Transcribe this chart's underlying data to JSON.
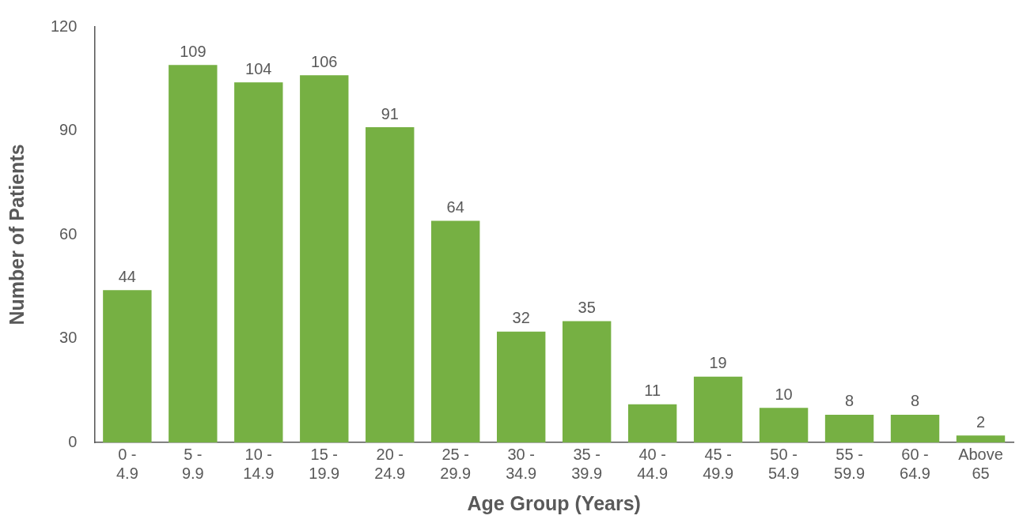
{
  "chart_data": {
    "type": "bar",
    "xlabel": "Age Group (Years)",
    "ylabel": "Number of Patients",
    "categories": [
      "0 - 4.9",
      "5 - 9.9",
      "10 - 14.9",
      "15 - 19.9",
      "20 - 24.9",
      "25 - 29.9",
      "30 - 34.9",
      "35 - 39.9",
      "40 - 44.9",
      "45 - 49.9",
      "50 - 54.9",
      "55 - 59.9",
      "60 - 64.9",
      "Above 65"
    ],
    "values": [
      44,
      109,
      104,
      106,
      91,
      64,
      32,
      35,
      11,
      19,
      10,
      8,
      8,
      2
    ],
    "color": "#76b043",
    "ylim": [
      0,
      120
    ],
    "yticks": [
      0,
      30,
      60,
      90,
      120
    ],
    "grid": false,
    "legend": false,
    "data_labels": true
  }
}
